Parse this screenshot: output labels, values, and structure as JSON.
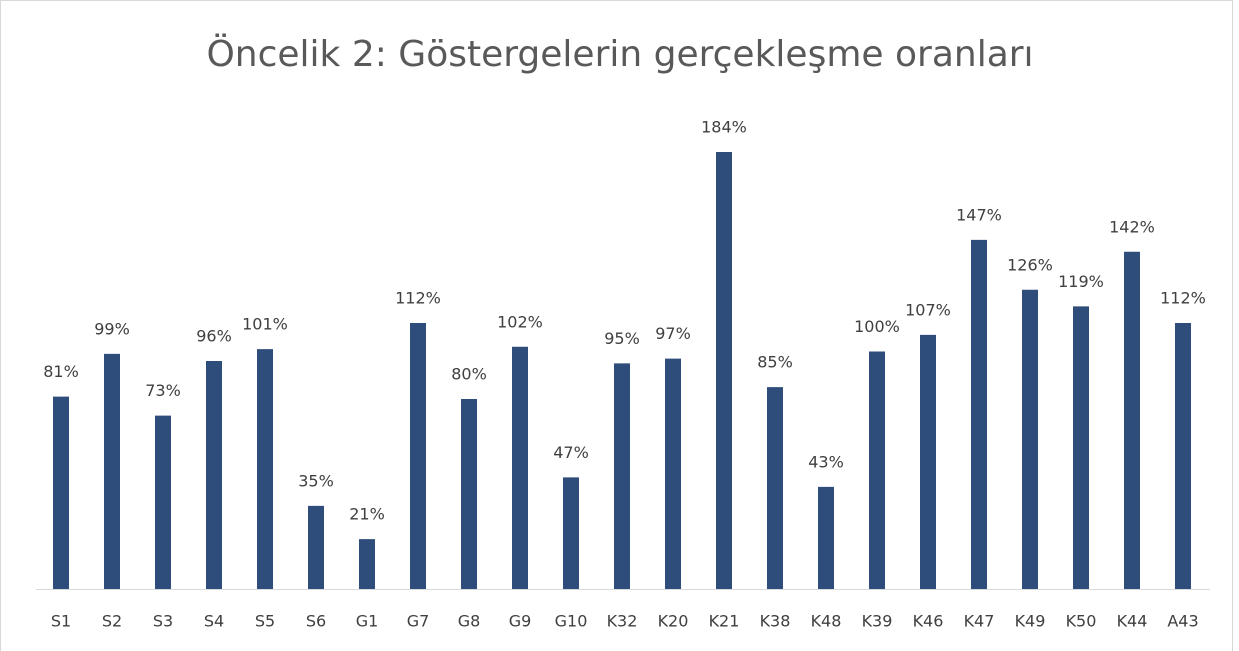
{
  "chart_data": {
    "type": "bar",
    "title": "Öncelik 2: Göstergelerin gerçekleşme oranları",
    "categories": [
      "S1",
      "S2",
      "S3",
      "S4",
      "S5",
      "S6",
      "G1",
      "G7",
      "G8",
      "G9",
      "G10",
      "K32",
      "K20",
      "K21",
      "K38",
      "K48",
      "K39",
      "K46",
      "K47",
      "K49",
      "K50",
      "K44",
      "A43"
    ],
    "values": [
      81,
      99,
      73,
      96,
      101,
      35,
      21,
      112,
      80,
      102,
      47,
      95,
      97,
      184,
      85,
      43,
      100,
      107,
      147,
      126,
      119,
      142,
      112
    ],
    "value_labels": [
      "81%",
      "99%",
      "73%",
      "96%",
      "101%",
      "35%",
      "21%",
      "112%",
      "80%",
      "102%",
      "47%",
      "95%",
      "97%",
      "184%",
      "85%",
      "43%",
      "100%",
      "107%",
      "147%",
      "126%",
      "119%",
      "142%",
      "112%"
    ],
    "color": "#2e4d7b"
  }
}
